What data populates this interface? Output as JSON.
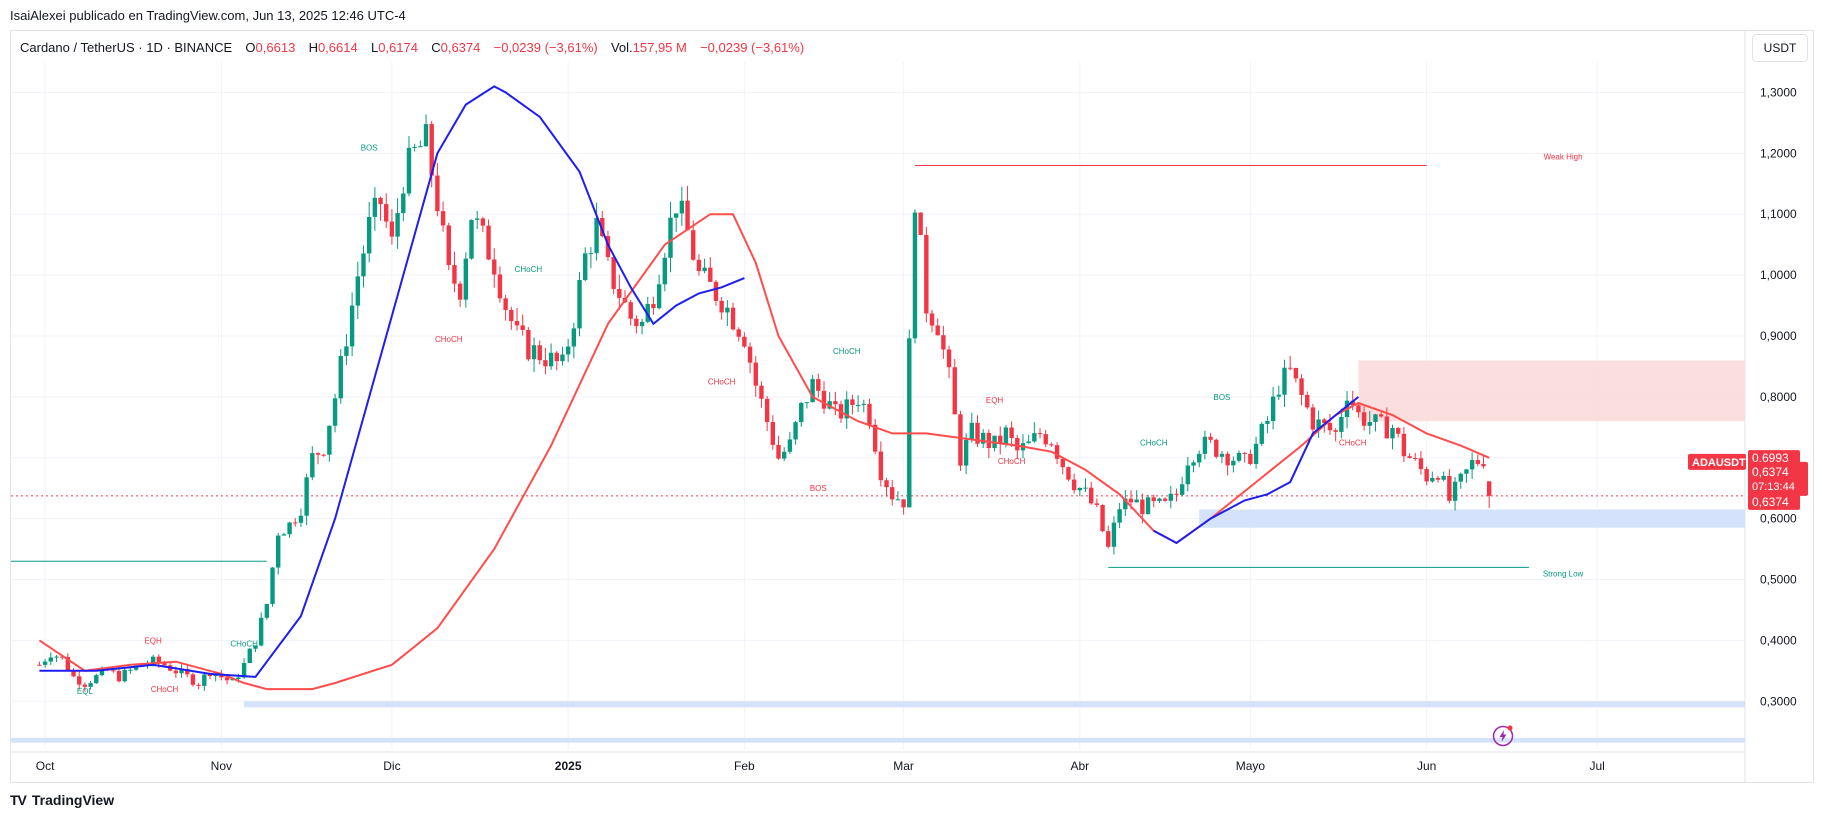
{
  "attribution": "IsaiAlexei publicado en TradingView.com, Jun 13, 2025 12:46 UTC-4",
  "legend": {
    "symbol": "Cardano / TetherUS · 1D · BINANCE",
    "o_label": "O",
    "o_val": "0,6613",
    "h_label": "H",
    "h_val": "0,6614",
    "l_label": "L",
    "l_val": "0,6174",
    "c_label": "C",
    "c_val": "0,6374",
    "change": "−0,0239 (−3,61%)",
    "vol_label": "Vol.",
    "vol_val": "157,95 M",
    "vol_change": "−0,0239 (−3,61%)"
  },
  "currency_button": "USDT",
  "brand": "TradingView",
  "colors": {
    "up": "#089981",
    "down": "#f23645",
    "ma_blue": "#1e1ef0",
    "ma_red": "#ff4d4d",
    "zone_blue": "#cfe0fb",
    "zone_red": "#fbdada",
    "grid": "#f0f3fa"
  },
  "price_labels": {
    "ticker": "ADAUSDT",
    "last": "0,6374",
    "countdown": "07:13:44",
    "ma": "0,6993",
    "close": "0,6374"
  },
  "chart_data": {
    "type": "candlestick",
    "title": "",
    "y_ticks": [
      "1,3000",
      "1,2000",
      "1,1000",
      "1,0000",
      "0,9000",
      "0,8000",
      "0,7000",
      "0,6000",
      "0,5000",
      "0,4000",
      "0,3000"
    ],
    "y_tick_values": [
      1.3,
      1.2,
      1.1,
      1.0,
      0.9,
      0.8,
      0.7,
      0.6,
      0.5,
      0.4,
      0.3
    ],
    "ylim": [
      0.22,
      1.35
    ],
    "x_ticks": [
      "Oct",
      "Nov",
      "Dic",
      "2025",
      "Feb",
      "Mar",
      "Abr",
      "Mayo",
      "Jun",
      "Jul"
    ],
    "x_tick_days": [
      1,
      32,
      62,
      93,
      124,
      152,
      183,
      213,
      244,
      274
    ],
    "xlim": [
      -5,
      300
    ],
    "x_axis_note": "days since Oct 1, 2024",
    "ohlc_anchors": [
      [
        0,
        0.36
      ],
      [
        2,
        0.38
      ],
      [
        4,
        0.37
      ],
      [
        6,
        0.34
      ],
      [
        8,
        0.33
      ],
      [
        10,
        0.34
      ],
      [
        12,
        0.35
      ],
      [
        14,
        0.34
      ],
      [
        16,
        0.35
      ],
      [
        18,
        0.36
      ],
      [
        20,
        0.365
      ],
      [
        22,
        0.36
      ],
      [
        24,
        0.35
      ],
      [
        26,
        0.34
      ],
      [
        28,
        0.33
      ],
      [
        30,
        0.35
      ],
      [
        32,
        0.34
      ],
      [
        34,
        0.33
      ],
      [
        36,
        0.36
      ],
      [
        38,
        0.4
      ],
      [
        40,
        0.46
      ],
      [
        42,
        0.58
      ],
      [
        44,
        0.59
      ],
      [
        46,
        0.62
      ],
      [
        48,
        0.7
      ],
      [
        50,
        0.72
      ],
      [
        52,
        0.8
      ],
      [
        54,
        0.9
      ],
      [
        56,
        1.0
      ],
      [
        58,
        1.08
      ],
      [
        60,
        1.12
      ],
      [
        62,
        1.05
      ],
      [
        64,
        1.16
      ],
      [
        66,
        1.2
      ],
      [
        68,
        1.22
      ],
      [
        70,
        1.12
      ],
      [
        72,
        1.0
      ],
      [
        74,
        0.98
      ],
      [
        76,
        1.1
      ],
      [
        78,
        1.06
      ],
      [
        80,
        1.02
      ],
      [
        82,
        0.95
      ],
      [
        84,
        0.9
      ],
      [
        86,
        0.88
      ],
      [
        88,
        0.87
      ],
      [
        90,
        0.86
      ],
      [
        92,
        0.85
      ],
      [
        94,
        0.93
      ],
      [
        96,
        1.03
      ],
      [
        98,
        1.08
      ],
      [
        100,
        1.01
      ],
      [
        102,
        0.97
      ],
      [
        104,
        0.93
      ],
      [
        106,
        0.92
      ],
      [
        108,
        0.97
      ],
      [
        110,
        1.05
      ],
      [
        112,
        1.12
      ],
      [
        114,
        1.07
      ],
      [
        116,
        1.0
      ],
      [
        118,
        0.98
      ],
      [
        120,
        0.96
      ],
      [
        122,
        0.93
      ],
      [
        124,
        0.9
      ],
      [
        126,
        0.82
      ],
      [
        128,
        0.76
      ],
      [
        130,
        0.7
      ],
      [
        132,
        0.72
      ],
      [
        134,
        0.78
      ],
      [
        136,
        0.82
      ],
      [
        138,
        0.8
      ],
      [
        140,
        0.77
      ],
      [
        142,
        0.78
      ],
      [
        144,
        0.8
      ],
      [
        146,
        0.77
      ],
      [
        148,
        0.68
      ],
      [
        150,
        0.64
      ],
      [
        152,
        0.63
      ],
      [
        154,
        1.13
      ],
      [
        156,
        0.95
      ],
      [
        158,
        0.92
      ],
      [
        160,
        0.83
      ],
      [
        162,
        0.7
      ],
      [
        164,
        0.74
      ],
      [
        166,
        0.73
      ],
      [
        168,
        0.72
      ],
      [
        170,
        0.74
      ],
      [
        172,
        0.71
      ],
      [
        174,
        0.72
      ],
      [
        176,
        0.74
      ],
      [
        178,
        0.73
      ],
      [
        180,
        0.69
      ],
      [
        182,
        0.66
      ],
      [
        184,
        0.64
      ],
      [
        186,
        0.61
      ],
      [
        188,
        0.55
      ],
      [
        190,
        0.62
      ],
      [
        192,
        0.63
      ],
      [
        194,
        0.62
      ],
      [
        196,
        0.62
      ],
      [
        198,
        0.62
      ],
      [
        200,
        0.64
      ],
      [
        202,
        0.7
      ],
      [
        204,
        0.72
      ],
      [
        206,
        0.72
      ],
      [
        208,
        0.71
      ],
      [
        210,
        0.7
      ],
      [
        212,
        0.69
      ],
      [
        214,
        0.72
      ],
      [
        216,
        0.76
      ],
      [
        218,
        0.82
      ],
      [
        220,
        0.84
      ],
      [
        222,
        0.8
      ],
      [
        224,
        0.76
      ],
      [
        226,
        0.75
      ],
      [
        228,
        0.74
      ],
      [
        230,
        0.81
      ],
      [
        232,
        0.77
      ],
      [
        234,
        0.76
      ],
      [
        236,
        0.75
      ],
      [
        238,
        0.75
      ],
      [
        240,
        0.71
      ],
      [
        242,
        0.69
      ],
      [
        244,
        0.67
      ],
      [
        246,
        0.68
      ],
      [
        248,
        0.63
      ],
      [
        250,
        0.66
      ],
      [
        252,
        0.69
      ],
      [
        254,
        0.7
      ],
      [
        255,
        0.6374
      ]
    ],
    "ma_blue": [
      [
        0,
        0.35
      ],
      [
        10,
        0.35
      ],
      [
        20,
        0.36
      ],
      [
        30,
        0.345
      ],
      [
        38,
        0.34
      ],
      [
        46,
        0.44
      ],
      [
        52,
        0.6
      ],
      [
        58,
        0.8
      ],
      [
        64,
        1.0
      ],
      [
        70,
        1.2
      ],
      [
        75,
        1.28
      ],
      [
        80,
        1.31
      ],
      [
        82,
        1.3
      ],
      [
        88,
        1.26
      ],
      [
        95,
        1.17
      ],
      [
        100,
        1.05
      ],
      [
        104,
        0.98
      ],
      [
        108,
        0.92
      ],
      [
        112,
        0.95
      ],
      [
        116,
        0.97
      ],
      [
        120,
        0.98
      ],
      [
        124,
        0.995
      ]
    ],
    "ma_red": [
      [
        0,
        0.4
      ],
      [
        8,
        0.35
      ],
      [
        16,
        0.36
      ],
      [
        24,
        0.365
      ],
      [
        32,
        0.345
      ],
      [
        36,
        0.33
      ],
      [
        40,
        0.32
      ],
      [
        48,
        0.32
      ],
      [
        52,
        0.33
      ],
      [
        62,
        0.36
      ],
      [
        70,
        0.42
      ],
      [
        80,
        0.55
      ],
      [
        90,
        0.72
      ],
      [
        100,
        0.92
      ],
      [
        110,
        1.05
      ],
      [
        118,
        1.1
      ],
      [
        122,
        1.1
      ],
      [
        126,
        1.02
      ],
      [
        130,
        0.9
      ],
      [
        136,
        0.8
      ],
      [
        144,
        0.76
      ],
      [
        150,
        0.74
      ],
      [
        156,
        0.74
      ],
      [
        164,
        0.73
      ],
      [
        172,
        0.72
      ],
      [
        178,
        0.71
      ],
      [
        184,
        0.68
      ],
      [
        190,
        0.64
      ],
      [
        196,
        0.58
      ],
      [
        200,
        0.56
      ],
      [
        206,
        0.6
      ],
      [
        214,
        0.66
      ],
      [
        222,
        0.72
      ],
      [
        228,
        0.77
      ],
      [
        232,
        0.79
      ],
      [
        238,
        0.77
      ],
      [
        244,
        0.74
      ],
      [
        250,
        0.72
      ],
      [
        255,
        0.7
      ]
    ],
    "ma_blue_late": [
      [
        196,
        0.58
      ],
      [
        200,
        0.56
      ],
      [
        206,
        0.6
      ],
      [
        212,
        0.63
      ],
      [
        216,
        0.64
      ],
      [
        220,
        0.66
      ],
      [
        224,
        0.74
      ],
      [
        228,
        0.77
      ],
      [
        232,
        0.8
      ]
    ],
    "horizontal_lines": [
      {
        "name": "weak-high-line",
        "y": 1.18,
        "x0": 154,
        "x1": 244,
        "color": "#f23645"
      },
      {
        "name": "strong-low-line",
        "y": 0.52,
        "x0": 188,
        "x1": 262,
        "color": "#089981"
      },
      {
        "name": "left-support-line",
        "y": 0.53,
        "x0": -5,
        "x1": 40,
        "color": "#089981"
      },
      {
        "name": "current-price-line",
        "y": 0.6374,
        "x0": -5,
        "x1": 300,
        "color": "#f23645",
        "dashed": true
      }
    ],
    "zones": [
      {
        "name": "zone-blue-1",
        "y0": 0.3,
        "y1": 0.29,
        "x0": 36,
        "x1": 300,
        "kind": "blue"
      },
      {
        "name": "zone-blue-2",
        "y0": 0.615,
        "y1": 0.585,
        "x0": 204,
        "x1": 300,
        "kind": "blue"
      },
      {
        "name": "zone-blue-3",
        "y0": 0.24,
        "y1": 0.232,
        "x0": -5,
        "x1": 300,
        "kind": "blue"
      },
      {
        "name": "zone-red-1",
        "y0": 0.86,
        "y1": 0.76,
        "x0": 232,
        "x1": 300,
        "kind": "red"
      }
    ],
    "annotations": [
      {
        "text": "BOS",
        "x": 58,
        "y": 1.205,
        "color": "#089981"
      },
      {
        "text": "EQH",
        "x": 20,
        "y": 0.395,
        "color": "#f23645"
      },
      {
        "text": "EQL",
        "x": 8,
        "y": 0.312,
        "color": "#089981"
      },
      {
        "text": "CHoCH",
        "x": 22,
        "y": 0.315,
        "color": "#f23645"
      },
      {
        "text": "CHoCH",
        "x": 36,
        "y": 0.39,
        "color": "#089981"
      },
      {
        "text": "CHoCH",
        "x": 86,
        "y": 1.005,
        "color": "#089981"
      },
      {
        "text": "CHoCH",
        "x": 72,
        "y": 0.89,
        "color": "#f23645"
      },
      {
        "text": "CHoCH",
        "x": 120,
        "y": 0.82,
        "color": "#f23645"
      },
      {
        "text": "CHoCH",
        "x": 142,
        "y": 0.87,
        "color": "#089981"
      },
      {
        "text": "BOS",
        "x": 137,
        "y": 0.645,
        "color": "#f23645"
      },
      {
        "text": "EQH",
        "x": 168,
        "y": 0.79,
        "color": "#f23645"
      },
      {
        "text": "CHoCH",
        "x": 171,
        "y": 0.69,
        "color": "#f23645"
      },
      {
        "text": "CHoCH",
        "x": 196,
        "y": 0.72,
        "color": "#089981"
      },
      {
        "text": "BOS",
        "x": 208,
        "y": 0.795,
        "color": "#089981"
      },
      {
        "text": "CHoCH",
        "x": 231,
        "y": 0.72,
        "color": "#f23645"
      },
      {
        "text": "Weak High",
        "x": 268,
        "y": 1.19,
        "color": "#f23645"
      },
      {
        "text": "Strong Low",
        "x": 268,
        "y": 0.505,
        "color": "#089981"
      }
    ]
  }
}
